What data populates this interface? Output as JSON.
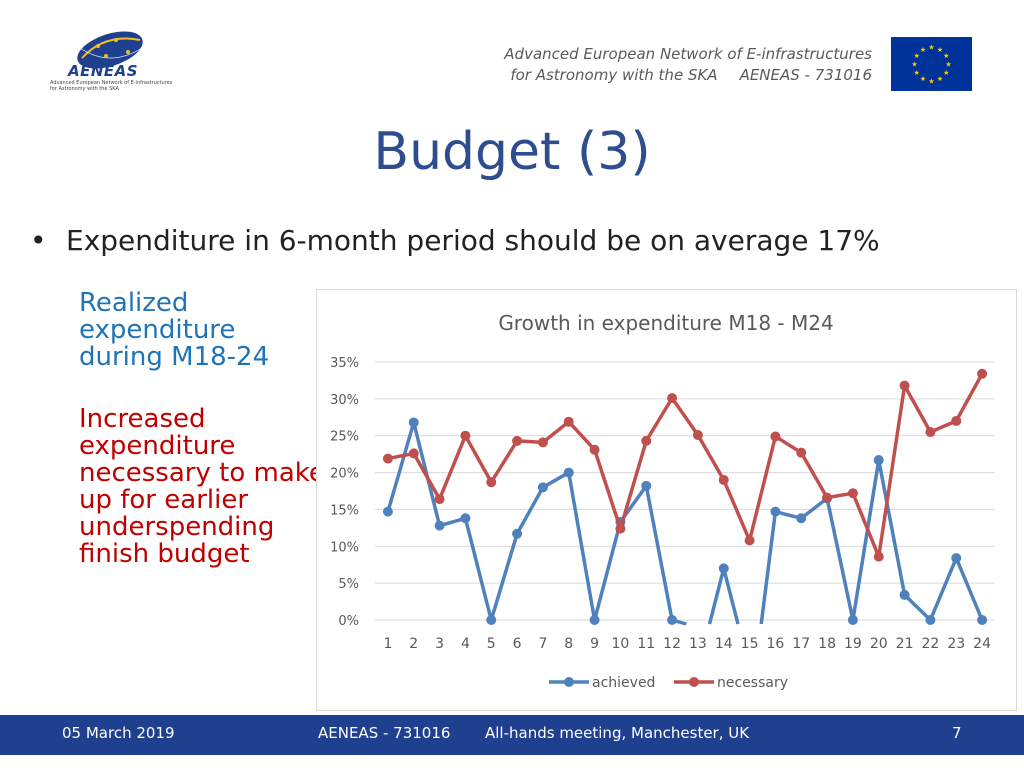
{
  "logo": {
    "name": "AENEAS",
    "subtitle": "Advanced European Network of E-infrastructures for Astronomy with the SKA"
  },
  "header": {
    "line1": "Advanced European Network of E-infrastructures",
    "line2a": "for Astronomy with the SKA",
    "line2b": "AENEAS - 731016"
  },
  "title": "Budget (3)",
  "bullet": "Expenditure in 6-month period should be on average 17%",
  "side": {
    "blue": "Realized expenditure during M18-24",
    "red": "Increased expenditure necessary to make up for earlier underspending finish budget"
  },
  "footer": {
    "date": "05 March 2019",
    "project": "AENEAS - 731016",
    "meeting": "All-hands meeting, Manchester, UK",
    "page": "7"
  },
  "colors": {
    "achieved": "#4f81bd",
    "necessary": "#c0504d",
    "title_blue": "#2e4d8f",
    "footer_bg": "#1f3f8f"
  },
  "chart_data": {
    "type": "line",
    "title": "Growth in expenditure M18 - M24",
    "xlabel": "",
    "ylabel": "",
    "categories": [
      "1",
      "2",
      "3",
      "4",
      "5",
      "6",
      "7",
      "8",
      "9",
      "10",
      "11",
      "12",
      "13",
      "14",
      "15",
      "16",
      "17",
      "18",
      "19",
      "20",
      "21",
      "22",
      "23",
      "24"
    ],
    "y_ticks": [
      "0%",
      "5%",
      "10%",
      "15%",
      "20%",
      "25%",
      "30%",
      "35%"
    ],
    "ylim": [
      0,
      35
    ],
    "grid": true,
    "legend": "bottom",
    "series": [
      {
        "name": "achieved",
        "color": "#4f81bd",
        "values": [
          14.7,
          26.8,
          12.8,
          13.8,
          0,
          11.7,
          18.0,
          20.0,
          0,
          13.3,
          18.2,
          0,
          null,
          7.0,
          null,
          14.7,
          13.8,
          16.5,
          0,
          21.7,
          3.4,
          0,
          8.4,
          0
        ]
      },
      {
        "name": "necessary",
        "color": "#c0504d",
        "values": [
          21.9,
          22.6,
          16.4,
          25.0,
          18.7,
          24.3,
          24.1,
          26.9,
          23.1,
          12.4,
          24.3,
          30.1,
          25.1,
          19.0,
          10.8,
          24.9,
          22.7,
          16.6,
          17.2,
          8.6,
          31.8,
          25.5,
          27.0,
          33.4
        ]
      }
    ]
  }
}
